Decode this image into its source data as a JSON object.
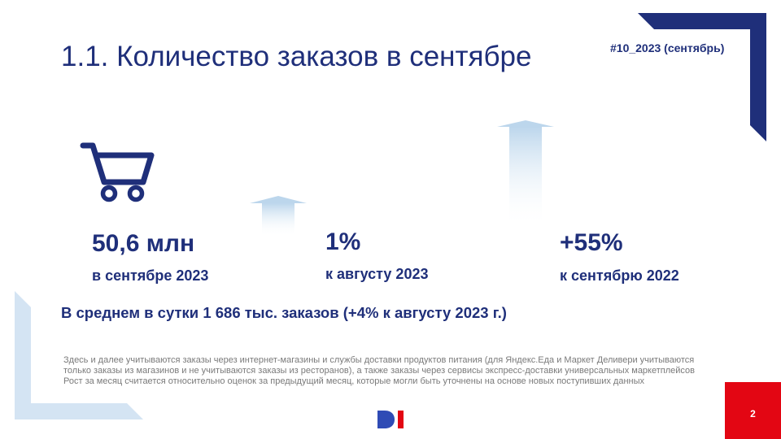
{
  "header": {
    "title": "1.1. Количество заказов в сентябре",
    "issue": "#10_2023 (сентябрь)"
  },
  "colors": {
    "primary": "#1f2f7a",
    "accent_red": "#e30613",
    "light_blue": "#cfe2f3",
    "note_gray": "#7a7a7a"
  },
  "icons": [
    "shopping-cart-icon",
    "arrow-up-icon"
  ],
  "metrics": [
    {
      "value": "50,6 млн",
      "caption": "в сентябре 2023"
    },
    {
      "value": "1%",
      "caption": "к августу 2023"
    },
    {
      "value": "+55%",
      "caption": "к сентябрю 2022"
    }
  ],
  "average": "В среднем в сутки 1 686 тыс. заказов (+4% к августу 2023 г.)",
  "notes": {
    "line1": "Здесь и далее учитываются заказы через интернет-магазины и службы доставки продуктов питания (для Яндекс.Еда и Маркет Деливери учитываются только заказы из магазинов и не учитываются заказы из ресторанов), а также заказы через сервисы экспресс-доставки универсальных маркетплейсов",
    "line2": "Рост за месяц считается относительно оценок за предыдущий месяц, которые могли быть уточнены на основе новых поступивших данных"
  },
  "footer": {
    "page_number": "2"
  }
}
